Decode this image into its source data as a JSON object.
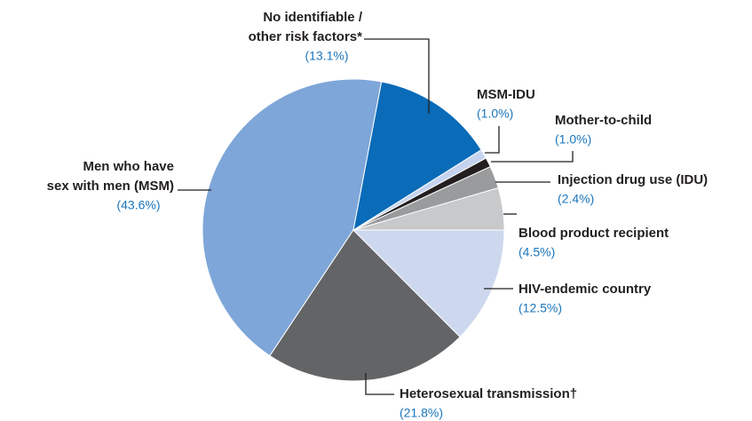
{
  "chart_data": {
    "type": "pie",
    "categories": [
      "Blood product recipient",
      "Injection drug use (IDU)",
      "Mother-to-child",
      "MSM-IDU",
      "No identifiable /\nother risk factors*",
      "Men who have\nsex with men (MSM)",
      "Heterosexual transmission†",
      "HIV-endemic country"
    ],
    "values": [
      4.5,
      2.4,
      1.0,
      1.0,
      13.1,
      43.6,
      21.8,
      12.5
    ],
    "value_labels": [
      "(4.5%)",
      "(2.4%)",
      "(1.0%)",
      "(1.0%)",
      "(13.1%)",
      "(43.6%)",
      "(21.8%)",
      "(12.5%)"
    ],
    "colors": [
      "#c8c9ca",
      "#9a9b9d",
      "#231f20",
      "#c5d3ee",
      "#0a6bb8",
      "#7ea6d8",
      "#636466",
      "#cdd8ef"
    ]
  }
}
